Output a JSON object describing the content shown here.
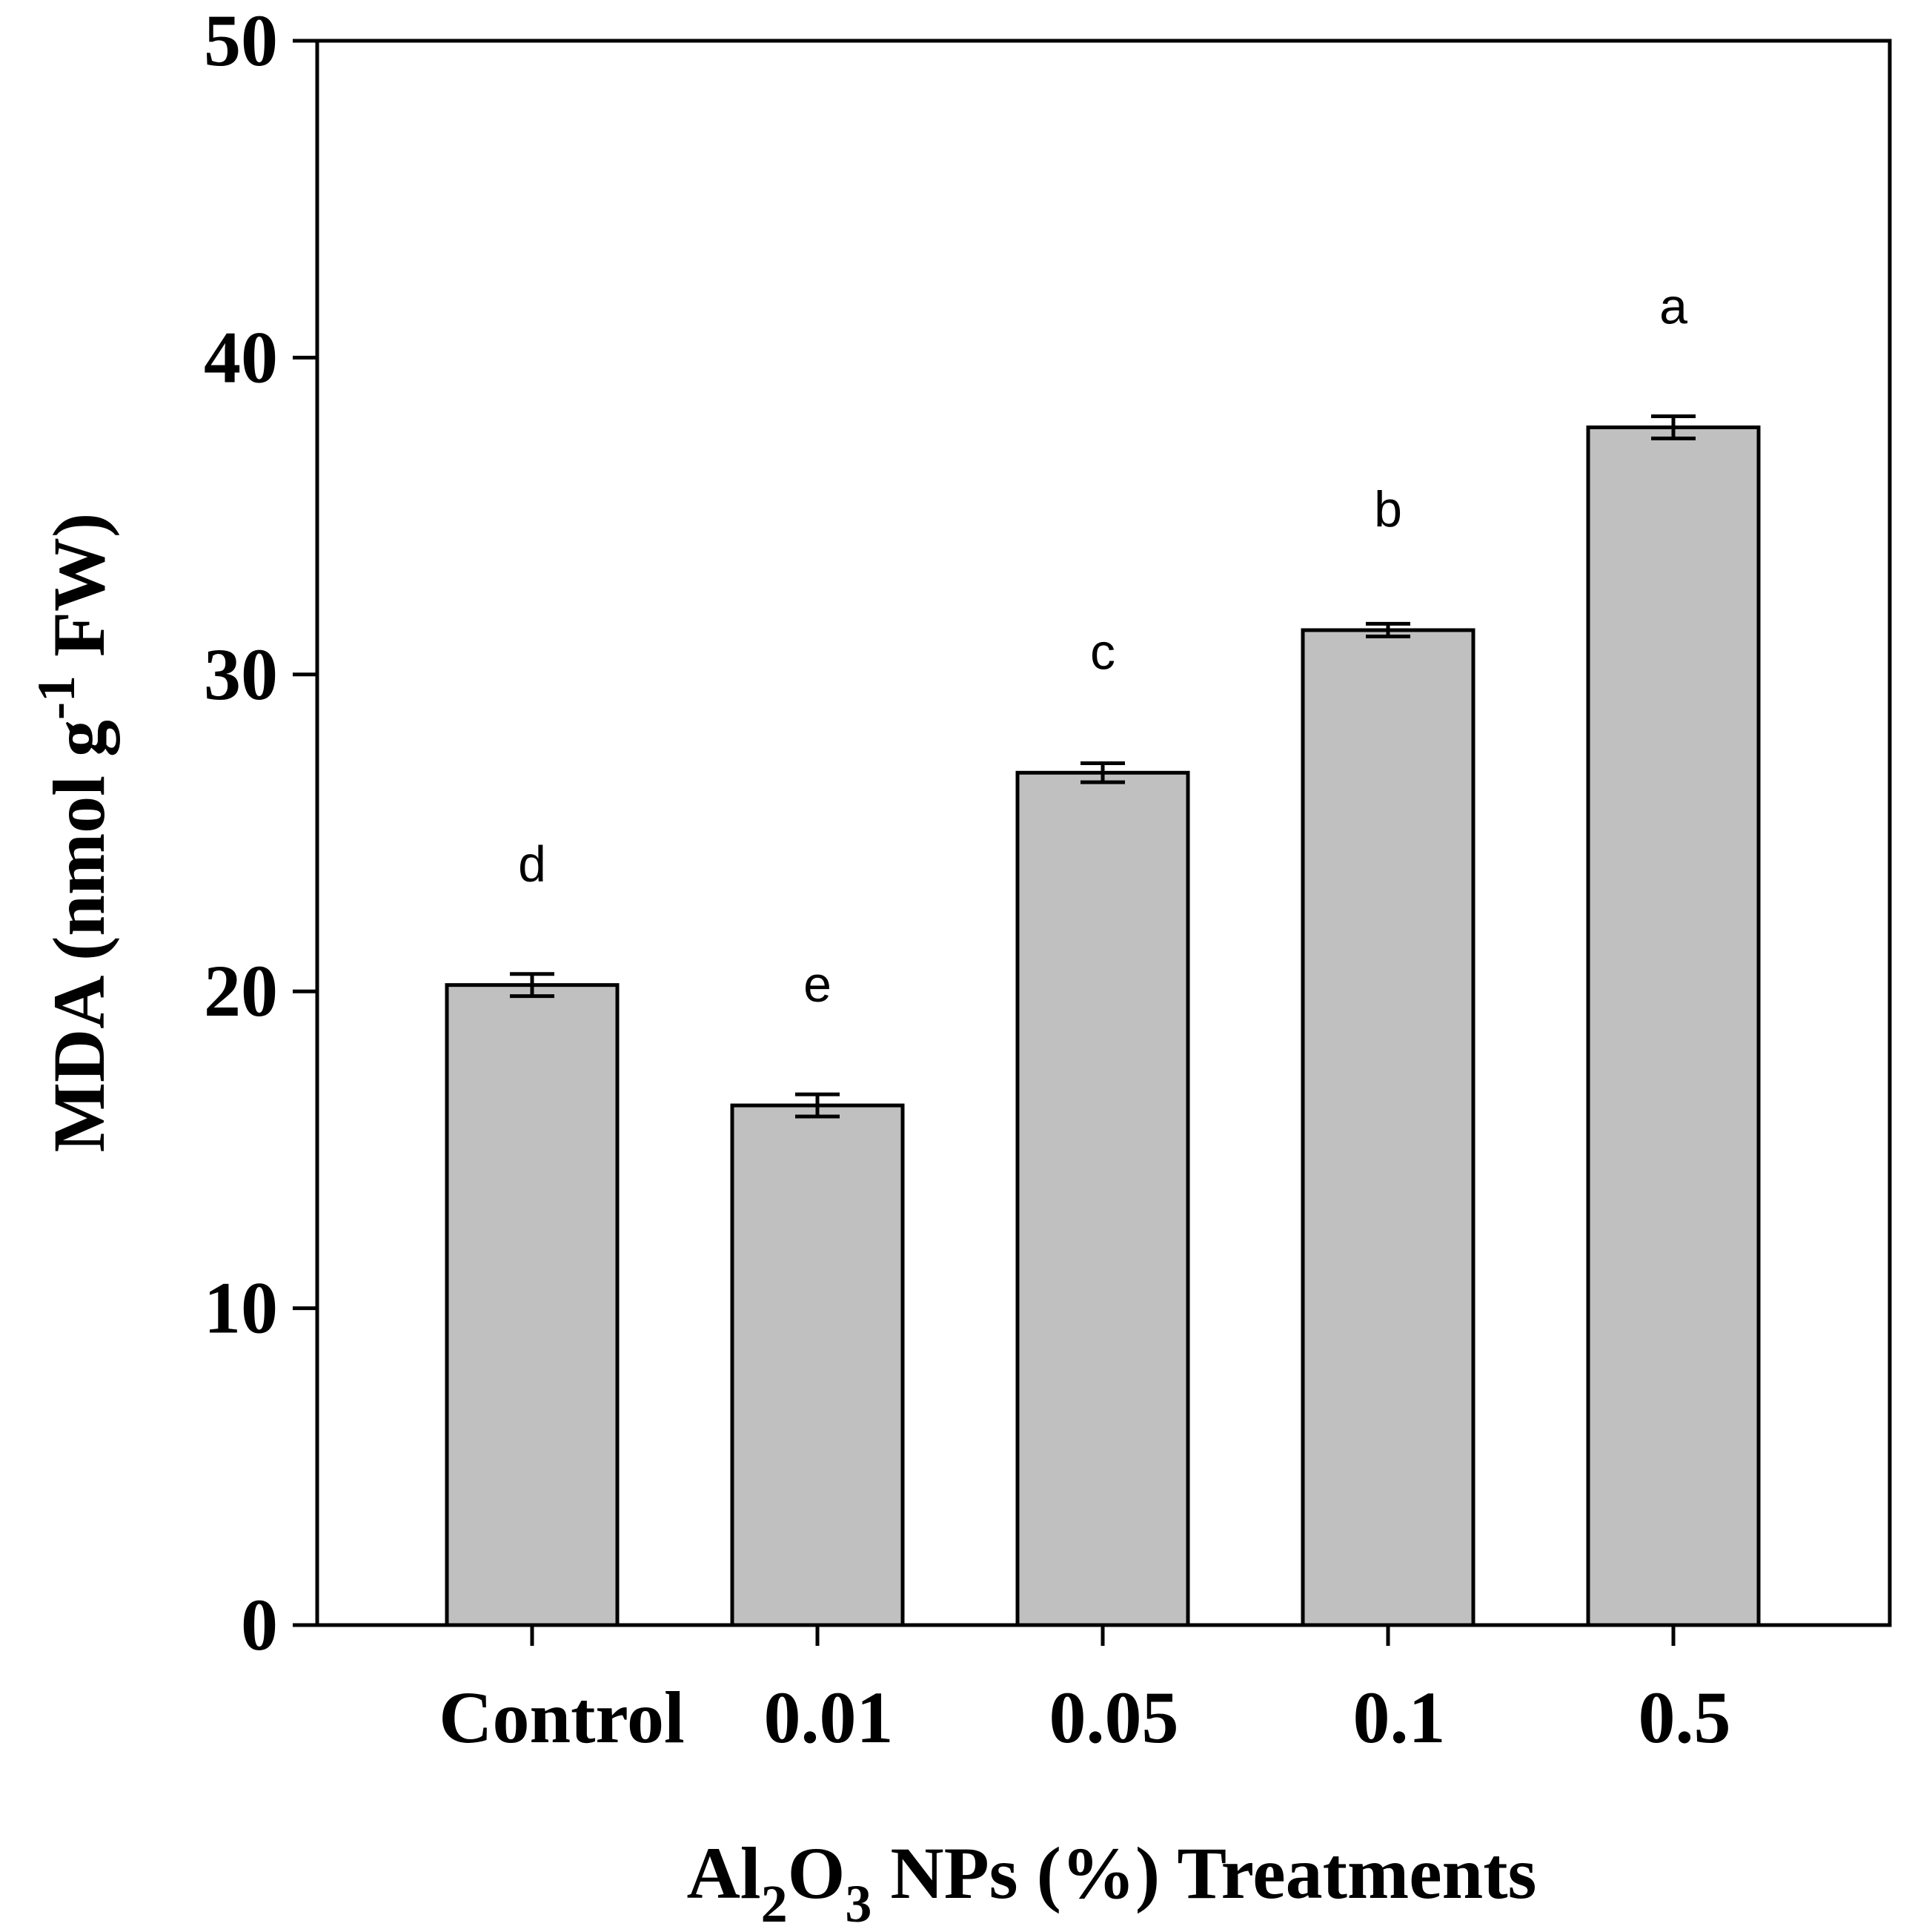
{
  "chart_data": {
    "type": "bar",
    "title": "",
    "categories": [
      "Control",
      "0.01",
      "0.05",
      "0.1",
      "0.5"
    ],
    "values": [
      20.2,
      16.4,
      26.9,
      31.4,
      37.8
    ],
    "errors": [
      0.35,
      0.35,
      0.3,
      0.2,
      0.35
    ],
    "significance_letters": [
      "d",
      "e",
      "c",
      "b",
      "a"
    ],
    "ylim": [
      0,
      50
    ],
    "yticks": [
      0,
      10,
      20,
      30,
      40,
      50
    ],
    "ylabel": {
      "main": "MDA (nmol g",
      "superscript": "-1",
      "suffix": " FW)"
    },
    "xlabel": {
      "pre": "Al",
      "sub1": "2",
      "mid": "O",
      "sub2": "3",
      "post": " NPs (%) Treatments"
    },
    "bar_color": "#c0c0c0",
    "grid": false
  }
}
